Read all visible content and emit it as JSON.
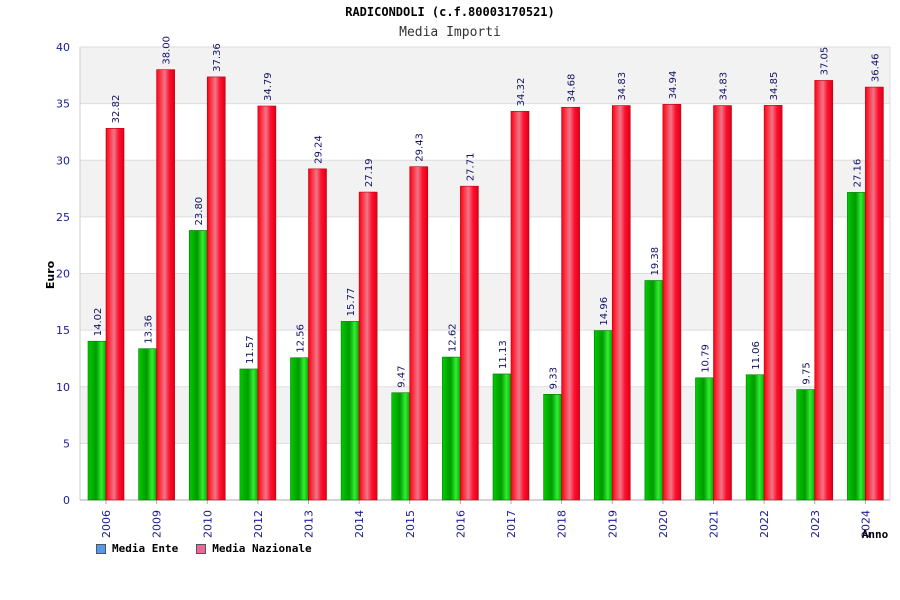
{
  "chart_data": {
    "type": "bar",
    "title": "RADICONDOLI (c.f.80003170521)",
    "subtitle": "Media Importi",
    "ylabel": "Euro",
    "xlabel": "Anno",
    "ylim": [
      0,
      40
    ],
    "yticks": [
      0,
      5,
      10,
      15,
      20,
      25,
      30,
      35,
      40
    ],
    "categories": [
      "2006",
      "2009",
      "2010",
      "2012",
      "2013",
      "2014",
      "2015",
      "2016",
      "2017",
      "2018",
      "2019",
      "2020",
      "2021",
      "2022",
      "2023",
      "2024"
    ],
    "series": [
      {
        "name": "Media Ente",
        "color": "#00bb00",
        "values": [
          14.02,
          13.36,
          23.8,
          11.57,
          12.56,
          15.77,
          9.47,
          12.62,
          11.13,
          9.33,
          14.96,
          19.38,
          10.79,
          11.06,
          9.75,
          27.16
        ],
        "labels": [
          "14.02",
          "13.36",
          "23.80",
          "11.57",
          "12.56",
          "15.77",
          "9.47",
          "12.62",
          "11.13",
          "9.33",
          "14.96",
          "19.38",
          "10.79",
          "11.06",
          "9.75",
          "27.16"
        ]
      },
      {
        "name": "Media Nazionale",
        "color": "#ee1122",
        "values": [
          32.82,
          38.0,
          37.36,
          34.79,
          29.24,
          27.19,
          29.43,
          27.71,
          34.32,
          34.68,
          34.83,
          34.94,
          34.83,
          34.85,
          37.05,
          36.46
        ],
        "labels": [
          "32.82",
          "38.00",
          "37.36",
          "34.79",
          "29.24",
          "27.19",
          "29.43",
          "27.71",
          "34.32",
          "34.68",
          "34.83",
          "34.94",
          "34.83",
          "34.85",
          "37.05",
          "36.46"
        ]
      }
    ],
    "legend": {
      "position": "bottom-left",
      "items": [
        {
          "label": "Media Ente",
          "color": "#5599ee"
        },
        {
          "label": "Media Nazionale",
          "color": "#ee6699"
        }
      ]
    },
    "grid": true
  }
}
